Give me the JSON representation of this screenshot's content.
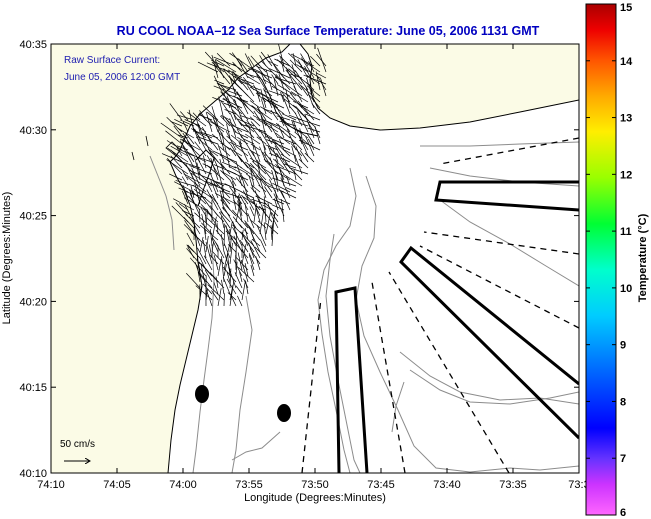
{
  "title": "RU COOL  NOAA–12  Sea Surface Temperature:  June 05, 2006 1131 GMT",
  "annotation": {
    "line1": "Raw Surface Current:",
    "line2": "June 05, 2006 12:00 GMT"
  },
  "scale_label": "50 cm/s",
  "x_axis": {
    "label": "Longitude (Degrees:Minutes)",
    "ticks": [
      "74:10",
      "74:05",
      "74:00",
      "73:55",
      "73:50",
      "73:45",
      "73:40",
      "73:35",
      "73:3"
    ]
  },
  "y_axis": {
    "label": "Latitude (Degrees:Minutes)",
    "ticks": [
      "40:35",
      "40:30",
      "40:25",
      "40:20",
      "40:15",
      "40:10"
    ]
  },
  "colorbar": {
    "label": "Temperature (°C)",
    "ticks": [
      "15",
      "14",
      "13",
      "12",
      "11",
      "10",
      "9",
      "8",
      "7",
      "6"
    ],
    "min": 6,
    "max": 15
  },
  "colors": {
    "title": "#0000c0",
    "annotation": "#2020b0",
    "land": "#fbfbe6",
    "contour": "#8c8c8c"
  }
}
